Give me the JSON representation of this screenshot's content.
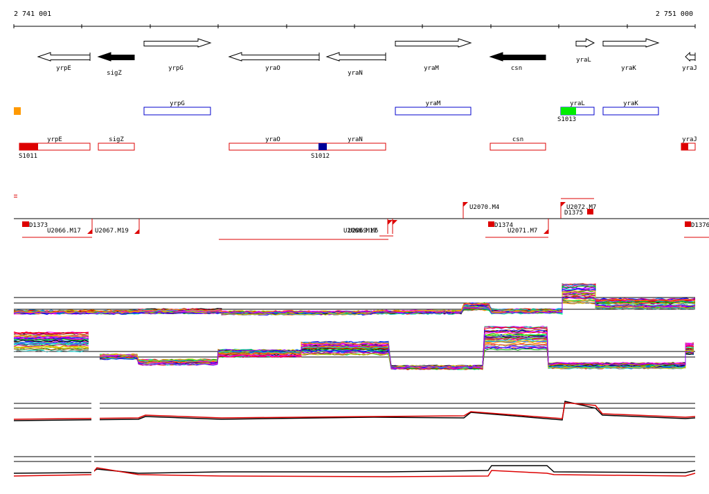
{
  "ruler": {
    "start_label": "2 741 001",
    "end_label": "2 751 000"
  },
  "colors": {
    "gene_fill_black": "#000000",
    "blue_box": "#0000cc",
    "red_box": "#dd0000",
    "green": "#00ee00",
    "orange": "#ff9900",
    "navy": "#000099"
  },
  "genes": [
    {
      "name": "yrpE",
      "dir": "left",
      "filled": false
    },
    {
      "name": "sigZ",
      "dir": "left",
      "filled": true
    },
    {
      "name": "yrpG",
      "dir": "right",
      "filled": false
    },
    {
      "name": "yraO",
      "dir": "left",
      "filled": false
    },
    {
      "name": "yraN",
      "dir": "left",
      "filled": false
    },
    {
      "name": "yraM",
      "dir": "right",
      "filled": false
    },
    {
      "name": "csn",
      "dir": "left",
      "filled": true
    },
    {
      "name": "yraL",
      "dir": "right",
      "filled": false
    },
    {
      "name": "yraK",
      "dir": "right",
      "filled": false
    },
    {
      "name": "yraJ",
      "dir": "left",
      "filled": false
    }
  ],
  "forward_boxes": [
    {
      "name": "yrpG"
    },
    {
      "name": "yraM"
    },
    {
      "name": "yraL"
    },
    {
      "name": "yraK"
    }
  ],
  "forward_sites": [
    {
      "label": "S1013"
    }
  ],
  "reverse_boxes": [
    {
      "name": "yrpE"
    },
    {
      "name": "sigZ"
    },
    {
      "name": "yraO"
    },
    {
      "name": "yraN"
    },
    {
      "name": "csn"
    },
    {
      "name": "yraJ"
    }
  ],
  "reverse_sites": [
    {
      "label": "S1011"
    },
    {
      "label": "S1012"
    }
  ],
  "features_upper": [
    {
      "label": "U2070.M4"
    },
    {
      "label": "U2072.M7"
    },
    {
      "label": "D1375"
    }
  ],
  "features_lower": [
    {
      "label": "D1373"
    },
    {
      "label": "U2066.M17"
    },
    {
      "label": "U2067.M19"
    },
    {
      "label": "U2068.M17"
    },
    {
      "label": "U2069.M6"
    },
    {
      "label": "D1374"
    },
    {
      "label": "U2071.M7"
    },
    {
      "label": "D1376"
    }
  ]
}
